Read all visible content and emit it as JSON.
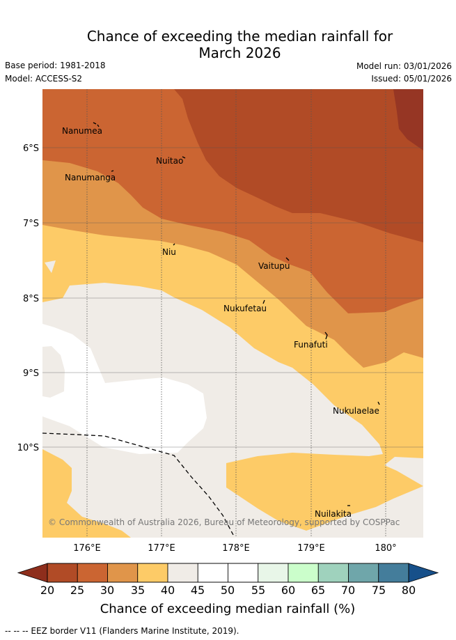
{
  "title": {
    "line1": "Chance of exceeding the median rainfall for",
    "line2": "March 2026"
  },
  "meta": {
    "base_period": "Base period: 1981-2018",
    "model": "Model: ACCESS-S2",
    "model_run": "Model run: 03/01/2026",
    "issued": "Issued: 05/01/2026"
  },
  "map": {
    "lon_ticks": [
      "176°E",
      "177°E",
      "178°E",
      "179°E",
      "180°"
    ],
    "lat_ticks": [
      "6°S",
      "7°S",
      "8°S",
      "9°S",
      "10°S"
    ],
    "places": [
      "Nanumea",
      "Nuitao",
      "Nanumanga",
      "Niu",
      "Vaitupu",
      "Nukufetau",
      "Funafuti",
      "Nukulaelae",
      "Nuilakita"
    ],
    "copyright": "© Commonwealth of Australia 2026, Bureau of Meteorology, supported by COSPPac"
  },
  "colorbar": {
    "label": "Chance of exceeding median rainfall (%)",
    "ticks": [
      "20",
      "25",
      "30",
      "35",
      "40",
      "45",
      "50",
      "55",
      "60",
      "65",
      "70",
      "75",
      "80"
    ],
    "under_color": "#8e2e1c",
    "over_color": "#17508a",
    "colors": [
      "#b14b26",
      "#cb6532",
      "#e0954a",
      "#fdcb67",
      "#f0ece7",
      "#ffffff",
      "#ffffff",
      "#e8f6e8",
      "#cbfecb",
      "#9fd2bd",
      "#6fa6aa",
      "#447d9b"
    ]
  },
  "legend_note": "--  --  -- EEZ border V11 (Flanders Marine Institute, 2019)."
}
